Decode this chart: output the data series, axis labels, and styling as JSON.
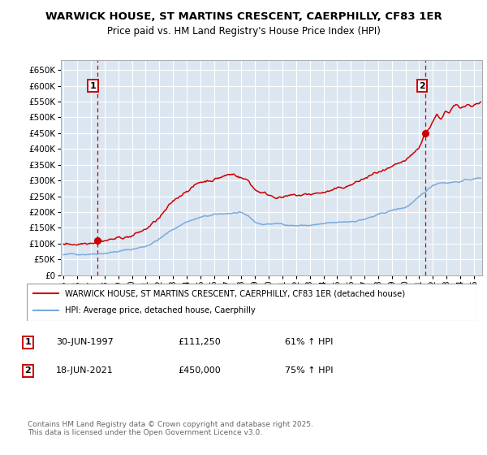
{
  "title": "WARWICK HOUSE, ST MARTINS CRESCENT, CAERPHILLY, CF83 1ER",
  "subtitle": "Price paid vs. HM Land Registry's House Price Index (HPI)",
  "ylabel_ticks": [
    0,
    50000,
    100000,
    150000,
    200000,
    250000,
    300000,
    350000,
    400000,
    450000,
    500000,
    550000,
    600000,
    650000
  ],
  "ylim_max": 680000,
  "xlim_start": 1994.8,
  "xlim_end": 2025.6,
  "sale1_year": 1997.49,
  "sale1_price": 111250,
  "sale2_year": 2021.46,
  "sale2_price": 450000,
  "sale1_label": "1",
  "sale2_label": "2",
  "sale1_date": "30-JUN-1997",
  "sale1_amount": "£111,250",
  "sale1_hpi": "61% ↑ HPI",
  "sale2_date": "18-JUN-2021",
  "sale2_amount": "£450,000",
  "sale2_hpi": "75% ↑ HPI",
  "legend_line1": "WARWICK HOUSE, ST MARTINS CRESCENT, CAERPHILLY, CF83 1ER (detached house)",
  "legend_line2": "HPI: Average price, detached house, Caerphilly",
  "footer": "Contains HM Land Registry data © Crown copyright and database right 2025.\nThis data is licensed under the Open Government Licence v3.0.",
  "red_color": "#cc0000",
  "blue_color": "#7aaadd",
  "bg_color": "#dce6f1",
  "grid_color": "#ffffff"
}
